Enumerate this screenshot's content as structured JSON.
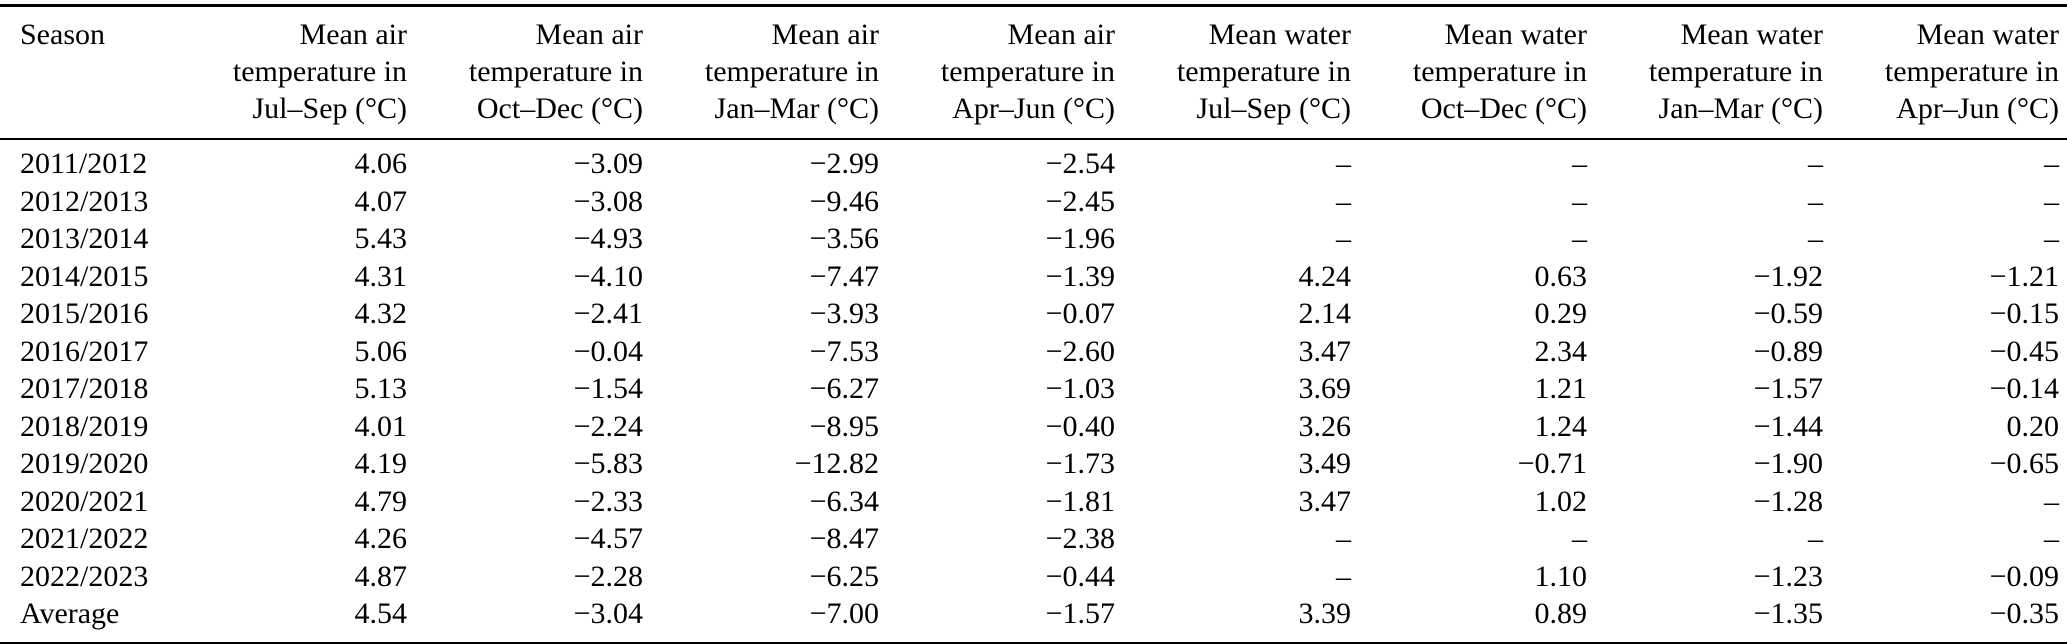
{
  "page": {
    "background": "#ffffff",
    "text_color": "#000000",
    "rule_color": "#000000"
  },
  "table": {
    "missing_value_marker": "–",
    "columns": [
      {
        "id": "season",
        "label": "Season"
      },
      {
        "id": "air_jul_sep",
        "label": "Mean air\ntemperature in\nJul–Sep (°C)"
      },
      {
        "id": "air_oct_dec",
        "label": "Mean air\ntemperature in\nOct–Dec (°C)"
      },
      {
        "id": "air_jan_mar",
        "label": "Mean air\ntemperature in\nJan–Mar (°C)"
      },
      {
        "id": "air_apr_jun",
        "label": "Mean air\ntemperature in\nApr–Jun (°C)"
      },
      {
        "id": "water_jul_sep",
        "label": "Mean water\ntemperature in\nJul–Sep (°C)"
      },
      {
        "id": "water_oct_dec",
        "label": "Mean water\ntemperature in\nOct–Dec (°C)"
      },
      {
        "id": "water_jan_mar",
        "label": "Mean water\ntemperature in\nJan–Mar (°C)"
      },
      {
        "id": "water_apr_jun",
        "label": "Mean water\ntemperature in\nApr–Jun (°C)"
      }
    ],
    "rows": [
      {
        "season": "2011/2012",
        "values": [
          "4.06",
          "−3.09",
          "−2.99",
          "−2.54",
          "–",
          "–",
          "–",
          "–"
        ]
      },
      {
        "season": "2012/2013",
        "values": [
          "4.07",
          "−3.08",
          "−9.46",
          "−2.45",
          "–",
          "–",
          "–",
          "–"
        ]
      },
      {
        "season": "2013/2014",
        "values": [
          "5.43",
          "−4.93",
          "−3.56",
          "−1.96",
          "–",
          "–",
          "–",
          "–"
        ]
      },
      {
        "season": "2014/2015",
        "values": [
          "4.31",
          "−4.10",
          "−7.47",
          "−1.39",
          "4.24",
          "0.63",
          "−1.92",
          "−1.21"
        ]
      },
      {
        "season": "2015/2016",
        "values": [
          "4.32",
          "−2.41",
          "−3.93",
          "−0.07",
          "2.14",
          "0.29",
          "−0.59",
          "−0.15"
        ]
      },
      {
        "season": "2016/2017",
        "values": [
          "5.06",
          "−0.04",
          "−7.53",
          "−2.60",
          "3.47",
          "2.34",
          "−0.89",
          "−0.45"
        ]
      },
      {
        "season": "2017/2018",
        "values": [
          "5.13",
          "−1.54",
          "−6.27",
          "−1.03",
          "3.69",
          "1.21",
          "−1.57",
          "−0.14"
        ]
      },
      {
        "season": "2018/2019",
        "values": [
          "4.01",
          "−2.24",
          "−8.95",
          "−0.40",
          "3.26",
          "1.24",
          "−1.44",
          "0.20"
        ]
      },
      {
        "season": "2019/2020",
        "values": [
          "4.19",
          "−5.83",
          "−12.82",
          "−1.73",
          "3.49",
          "−0.71",
          "−1.90",
          "−0.65"
        ]
      },
      {
        "season": "2020/2021",
        "values": [
          "4.79",
          "−2.33",
          "−6.34",
          "−1.81",
          "3.47",
          "1.02",
          "−1.28",
          "–"
        ]
      },
      {
        "season": "2021/2022",
        "values": [
          "4.26",
          "−4.57",
          "−8.47",
          "−2.38",
          "–",
          "–",
          "–",
          "–"
        ]
      },
      {
        "season": "2022/2023",
        "values": [
          "4.87",
          "−2.28",
          "−6.25",
          "−0.44",
          "–",
          "1.10",
          "−1.23",
          "−0.09"
        ]
      },
      {
        "season": "Average",
        "values": [
          "4.54",
          "−3.04",
          "−7.00",
          "−1.57",
          "3.39",
          "0.89",
          "−1.35",
          "−0.35"
        ]
      }
    ]
  }
}
